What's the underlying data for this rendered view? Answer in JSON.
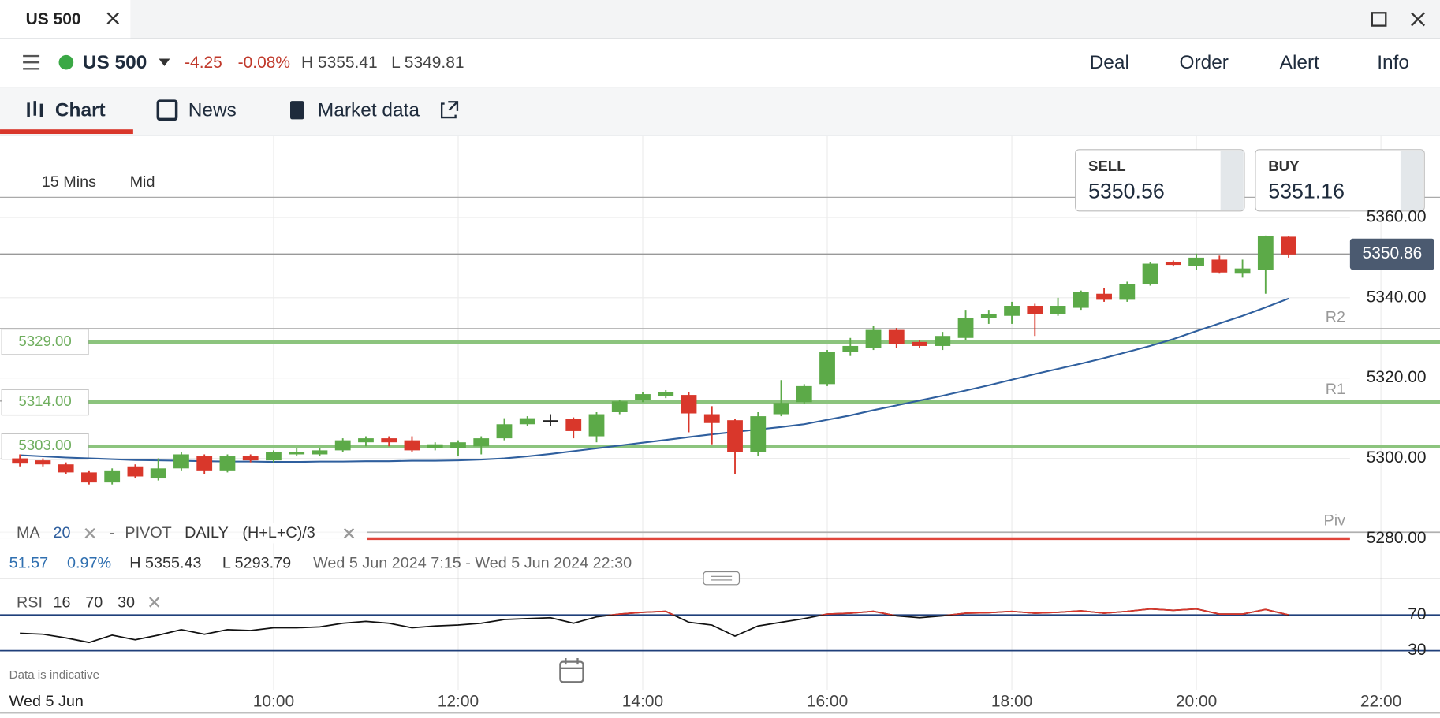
{
  "window": {
    "tab": "US 500"
  },
  "header": {
    "symbol": "US 500",
    "change": "-4.25",
    "change_pct": "-0.08%",
    "high": "H 5355.41",
    "low": "L 5349.81",
    "actions": [
      "Deal",
      "Order",
      "Alert",
      "Info"
    ]
  },
  "tabs": [
    "Chart",
    "News",
    "Market data"
  ],
  "toolbar": {
    "interval": "15 Mins",
    "price_type": "Mid"
  },
  "quotes": {
    "sell_label": "SELL",
    "sell": "5350.56",
    "buy_label": "BUY",
    "buy": "5351.16"
  },
  "indicators": {
    "ma": {
      "label": "MA",
      "period": "20"
    },
    "separator": "-",
    "pivot": {
      "label": "PIVOT",
      "period": "DAILY",
      "formula": "(H+L+C)/3"
    }
  },
  "stats": {
    "change": "51.57",
    "change_pct": "0.97%",
    "high": "H 5355.43",
    "low": "L 5293.79",
    "range": "Wed 5 Jun 2024 7:15 - Wed 5 Jun 2024 22:30"
  },
  "rsi_header": {
    "label": "RSI",
    "period": "16",
    "upper": "70",
    "lower": "30"
  },
  "footer": {
    "note": "Data is indicative",
    "date": "Wed 5 Jun"
  },
  "chart_data": [
    {
      "type": "candlestick",
      "x": [
        7.25,
        7.5,
        7.75,
        8,
        8.25,
        8.5,
        8.75,
        9,
        9.25,
        9.5,
        9.75,
        10,
        10.25,
        10.5,
        10.75,
        11,
        11.25,
        11.5,
        11.75,
        12,
        12.25,
        12.5,
        12.75,
        13,
        13.25,
        13.5,
        13.75,
        14,
        14.25,
        14.5,
        14.75,
        15,
        15.25,
        15.5,
        15.75,
        16,
        16.25,
        16.5,
        16.75,
        17,
        17.25,
        17.5,
        17.75,
        18,
        18.25,
        18.5,
        18.75,
        19,
        19.25,
        19.5,
        19.75,
        20,
        20.25,
        20.5,
        20.75,
        21
      ],
      "open": [
        5300,
        5299.5,
        5298.5,
        5296.5,
        5294,
        5298,
        5295,
        5297.5,
        5300.5,
        5297,
        5300.5,
        5299.5,
        5301,
        5301,
        5302,
        5304,
        5305,
        5304.5,
        5302.5,
        5302.5,
        5303,
        5305,
        5308.5,
        5309.5,
        5309.8,
        5305.5,
        5311.5,
        5314.5,
        5315.5,
        5315.8,
        5311,
        5309.5,
        5301.5,
        5311,
        5314,
        5318.5,
        5326.5,
        5327.5,
        5332,
        5329,
        5328,
        5330,
        5335,
        5335.5,
        5338,
        5336,
        5337.5,
        5341,
        5339.5,
        5343.5,
        5349,
        5348,
        5349.5,
        5346,
        5347,
        5355.2
      ],
      "high": [
        5301,
        5300,
        5299,
        5297,
        5297.5,
        5298.5,
        5300,
        5301.5,
        5301,
        5301,
        5301,
        5302,
        5302.5,
        5302.5,
        5305,
        5305.5,
        5305.5,
        5305.5,
        5304,
        5304.5,
        5305.5,
        5310,
        5310.5,
        5311,
        5310.2,
        5311.5,
        5314.5,
        5316.5,
        5317,
        5316.5,
        5313,
        5309.8,
        5311.5,
        5319.5,
        5318.5,
        5327,
        5330,
        5333,
        5332.5,
        5329.5,
        5331.5,
        5337,
        5337,
        5339,
        5338.5,
        5340,
        5341.8,
        5342.5,
        5344,
        5349,
        5349.3,
        5351,
        5350.5,
        5349.5,
        5355.5,
        5355.4
      ],
      "low": [
        5298,
        5298,
        5296,
        5293.5,
        5293.5,
        5295,
        5294.5,
        5297,
        5296,
        5296.5,
        5299,
        5299,
        5300.5,
        5300.5,
        5301.5,
        5303,
        5303,
        5301.5,
        5302,
        5300.5,
        5301,
        5304.5,
        5308,
        5308,
        5305,
        5304,
        5311,
        5314,
        5315,
        5306.5,
        5303.5,
        5296,
        5300.5,
        5310.5,
        5313.5,
        5318,
        5325.5,
        5327,
        5327.5,
        5327.5,
        5327,
        5329.5,
        5333.5,
        5333.5,
        5330.5,
        5335.5,
        5337,
        5339,
        5339,
        5343,
        5347.8,
        5347,
        5346,
        5345,
        5341,
        5350
      ],
      "close": [
        5298.7,
        5298.5,
        5296.5,
        5294,
        5297,
        5295.5,
        5297.5,
        5301,
        5297,
        5300.5,
        5299.5,
        5301.5,
        5301.6,
        5302,
        5304.5,
        5305,
        5304,
        5302,
        5303.5,
        5304,
        5305,
        5308.5,
        5310,
        5309.5,
        5306.8,
        5311,
        5314.2,
        5316,
        5316.5,
        5311.2,
        5308.8,
        5301.5,
        5310.5,
        5313.8,
        5318,
        5326.5,
        5328,
        5332,
        5328.5,
        5328,
        5330.5,
        5335,
        5336,
        5338,
        5336,
        5338,
        5341.5,
        5339.5,
        5343.5,
        5348.5,
        5348.2,
        5350,
        5346.3,
        5347.3,
        5355.3,
        5350.8
      ],
      "up_color": "#5caa48",
      "down_color": "#d9372b",
      "doji_color": "#222222",
      "ma": {
        "color": "#2f5f9e",
        "values": [
          5300.8,
          5300.5,
          5300.2,
          5300,
          5299.8,
          5299.6,
          5299.5,
          5299.4,
          5299.3,
          5299.2,
          5299.2,
          5299.1,
          5299.1,
          5299.2,
          5299.2,
          5299.3,
          5299.3,
          5299.4,
          5299.4,
          5299.5,
          5299.7,
          5300,
          5300.5,
          5301.1,
          5301.8,
          5302.5,
          5303.2,
          5303.9,
          5304.6,
          5305.3,
          5306,
          5306.6,
          5307.2,
          5307.8,
          5308.5,
          5309.6,
          5310.7,
          5312,
          5313.2,
          5314.4,
          5315.6,
          5316.9,
          5318.2,
          5319.6,
          5321,
          5322.3,
          5323.6,
          5325,
          5326.5,
          5328,
          5329.7,
          5331.7,
          5333.6,
          5335.5,
          5337.6,
          5339.8
        ]
      },
      "levels": [
        {
          "value": 5329,
          "label": "5329.00"
        },
        {
          "value": 5314,
          "label": "5314.00"
        },
        {
          "value": 5303,
          "label": "5303.00"
        }
      ],
      "level_color": "#8cc47e",
      "pivots": [
        {
          "name": "R2",
          "value": 5332.3
        },
        {
          "name": "R1",
          "value": 5314.3
        },
        {
          "name": "Piv",
          "value": 5281.6
        }
      ],
      "alert_level": 5280,
      "alert_color": "#e0463c",
      "last_price": 5350.86,
      "xlim": [
        7.035,
        22.64
      ],
      "xticks": [
        {
          "value": 10,
          "label": "10:00"
        },
        {
          "value": 12,
          "label": "12:00"
        },
        {
          "value": 14,
          "label": "14:00"
        },
        {
          "value": 16,
          "label": "16:00"
        },
        {
          "value": 18,
          "label": "18:00"
        },
        {
          "value": 20,
          "label": "20:00"
        },
        {
          "value": 22,
          "label": "22:00"
        }
      ],
      "ylim": [
        5277,
        5380
      ],
      "yticks": [
        {
          "value": 5360,
          "label": "5360.00"
        },
        {
          "value": 5340,
          "label": "5340.00"
        },
        {
          "value": 5320,
          "label": "5320.00"
        },
        {
          "value": 5300,
          "label": "5300.00"
        },
        {
          "value": 5280,
          "label": "5280.00"
        }
      ],
      "grid": true
    },
    {
      "type": "line",
      "values": [
        49.5,
        48.5,
        44.4,
        39.2,
        47.4,
        42.3,
        47.4,
        53.6,
        48.5,
        53.6,
        52.6,
        55.6,
        55.6,
        56.7,
        60.8,
        62.8,
        60.8,
        55.6,
        57.7,
        58.7,
        60.8,
        64.9,
        65.9,
        66.9,
        60.8,
        67.9,
        71,
        73,
        74,
        61.8,
        58.7,
        46.4,
        57.7,
        61.8,
        65.9,
        71,
        72,
        74,
        69,
        66.9,
        69,
        72,
        72.6,
        74,
        72,
        73,
        74.6,
        72,
        74,
        76.7,
        75.1,
        76.7,
        71,
        71,
        76.2,
        70
      ],
      "color": "#111111",
      "above_color": "#d9372b",
      "band_color": "#1f3f7a",
      "ylim": [
        -15,
        100
      ],
      "yticks": [
        70,
        30
      ]
    }
  ]
}
